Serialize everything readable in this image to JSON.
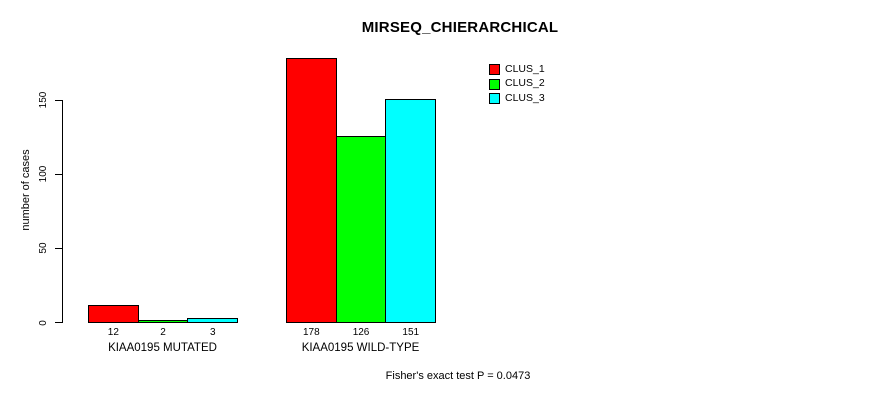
{
  "chart_data": {
    "type": "bar",
    "title": "MIRSEQ_CHIERARCHICAL",
    "ylabel": "number of cases",
    "xlabel": "",
    "categories": [
      "KIAA0195 MUTATED",
      "KIAA0195 WILD-TYPE"
    ],
    "series": [
      {
        "name": "CLUS_1",
        "color": "#ff0000",
        "values": [
          12,
          178
        ]
      },
      {
        "name": "CLUS_2",
        "color": "#00ff00",
        "values": [
          2,
          126
        ]
      },
      {
        "name": "CLUS_3",
        "color": "#00ffff",
        "values": [
          3,
          151
        ]
      }
    ],
    "yticks": [
      0,
      50,
      100,
      150
    ],
    "ylim": [
      0,
      150
    ],
    "grid": false,
    "legend_position": "top-right",
    "footnote": "Fisher's exact test P = 0.0473"
  }
}
